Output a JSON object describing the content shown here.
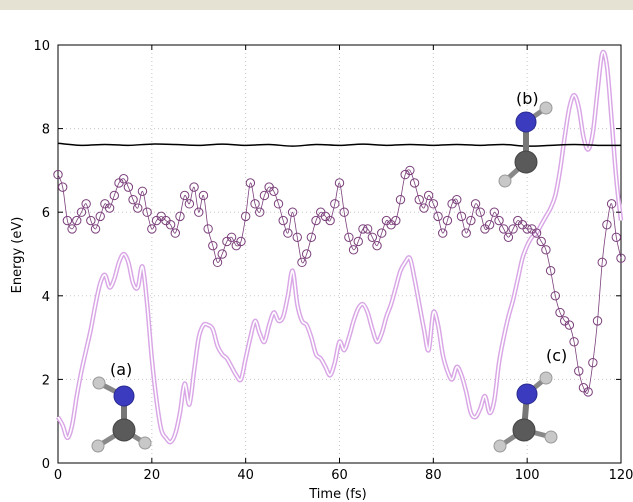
{
  "chart_data": {
    "type": "line",
    "title": "",
    "xlabel": "Time (fs)",
    "ylabel": "Energy (eV)",
    "xlim": [
      0,
      120
    ],
    "ylim": [
      0,
      10
    ],
    "xticks": [
      "0",
      "20",
      "40",
      "60",
      "80",
      "100",
      "120"
    ],
    "yticks": [
      "0",
      "2",
      "4",
      "6",
      "8",
      "10"
    ],
    "grid": true,
    "legend": "none",
    "annotations": [
      "(a)",
      "(b)",
      "(c)"
    ],
    "colors": {
      "total": "#000000",
      "markers": "#7a3f7a",
      "curve_outer": "#d9a6e6",
      "curve_inner": "#ffffff"
    },
    "series": [
      {
        "style": "solid-black",
        "x": [
          0,
          5,
          10,
          15,
          20,
          25,
          30,
          35,
          40,
          45,
          50,
          55,
          60,
          65,
          70,
          75,
          80,
          85,
          90,
          95,
          100,
          105,
          110,
          115,
          120
        ],
        "y": [
          7.65,
          7.6,
          7.62,
          7.6,
          7.63,
          7.62,
          7.6,
          7.63,
          7.6,
          7.62,
          7.58,
          7.62,
          7.6,
          7.63,
          7.6,
          7.62,
          7.6,
          7.62,
          7.6,
          7.62,
          7.58,
          7.6,
          7.62,
          7.6,
          7.6
        ]
      },
      {
        "style": "open-circles",
        "x": [
          0,
          1,
          2,
          3,
          4,
          5,
          6,
          7,
          8,
          9,
          10,
          11,
          12,
          13,
          14,
          15,
          16,
          17,
          18,
          19,
          20,
          21,
          22,
          23,
          24,
          25,
          26,
          27,
          28,
          29,
          30,
          31,
          32,
          33,
          34,
          35,
          36,
          37,
          38,
          39,
          40,
          41,
          42,
          43,
          44,
          45,
          46,
          47,
          48,
          49,
          50,
          51,
          52,
          53,
          54,
          55,
          56,
          57,
          58,
          59,
          60,
          61,
          62,
          63,
          64,
          65,
          66,
          67,
          68,
          69,
          70,
          71,
          72,
          73,
          74,
          75,
          76,
          77,
          78,
          79,
          80,
          81,
          82,
          83,
          84,
          85,
          86,
          87,
          88,
          89,
          90,
          91,
          92,
          93,
          94,
          95,
          96,
          97,
          98,
          99,
          100,
          101,
          102,
          103,
          104,
          105,
          106,
          107,
          108,
          109,
          110,
          111,
          112,
          113,
          114,
          115,
          116,
          117,
          118,
          119,
          120
        ],
        "y": [
          6.9,
          6.6,
          5.8,
          5.6,
          5.8,
          6.0,
          6.2,
          5.8,
          5.6,
          5.9,
          6.2,
          6.1,
          6.4,
          6.7,
          6.8,
          6.6,
          6.3,
          6.1,
          6.5,
          6.0,
          5.6,
          5.8,
          5.9,
          5.8,
          5.7,
          5.5,
          5.9,
          6.4,
          6.2,
          6.6,
          6.0,
          6.4,
          5.6,
          5.2,
          4.8,
          5.0,
          5.3,
          5.4,
          5.2,
          5.3,
          5.9,
          6.7,
          6.2,
          6.0,
          6.4,
          6.6,
          6.5,
          6.2,
          5.8,
          5.5,
          6.0,
          5.4,
          4.8,
          5.0,
          5.4,
          5.8,
          6.0,
          5.9,
          5.8,
          6.2,
          6.7,
          6.0,
          5.4,
          5.1,
          5.3,
          5.6,
          5.6,
          5.4,
          5.2,
          5.5,
          5.8,
          5.7,
          5.8,
          6.3,
          6.9,
          7.0,
          6.7,
          6.3,
          6.1,
          6.4,
          6.2,
          5.9,
          5.5,
          5.8,
          6.2,
          6.3,
          5.9,
          5.5,
          5.8,
          6.2,
          6.0,
          5.6,
          5.7,
          6.0,
          5.8,
          5.6,
          5.4,
          5.6,
          5.8,
          5.7,
          5.6,
          5.6,
          5.5,
          5.3,
          5.1,
          4.6,
          4.0,
          3.6,
          3.4,
          3.3,
          2.9,
          2.2,
          1.8,
          1.7,
          2.4,
          3.4,
          4.8,
          5.7,
          6.2,
          5.4,
          4.9
        ]
      },
      {
        "style": "double-line-pink",
        "x": [
          0,
          1,
          2,
          3,
          4,
          5,
          6,
          7,
          8,
          9,
          10,
          11,
          12,
          13,
          14,
          15,
          16,
          17,
          18,
          19,
          20,
          21,
          22,
          23,
          24,
          25,
          26,
          27,
          28,
          29,
          30,
          31,
          32,
          33,
          34,
          35,
          36,
          37,
          38,
          39,
          40,
          41,
          42,
          43,
          44,
          45,
          46,
          47,
          48,
          49,
          50,
          51,
          52,
          53,
          54,
          55,
          56,
          57,
          58,
          59,
          60,
          61,
          62,
          63,
          64,
          65,
          66,
          67,
          68,
          69,
          70,
          71,
          72,
          73,
          74,
          75,
          76,
          77,
          78,
          79,
          80,
          81,
          82,
          83,
          84,
          85,
          86,
          87,
          88,
          89,
          90,
          91,
          92,
          93,
          94,
          95,
          96,
          97,
          98,
          99,
          100,
          101,
          102,
          103,
          104,
          105,
          106,
          107,
          108,
          109,
          110,
          111,
          112,
          113,
          114,
          115,
          116,
          117,
          118,
          119,
          120
        ],
        "y": [
          1.1,
          0.9,
          0.6,
          0.9,
          1.6,
          2.2,
          2.7,
          3.2,
          3.8,
          4.3,
          4.5,
          4.2,
          4.4,
          4.8,
          5.0,
          4.8,
          4.3,
          4.2,
          4.7,
          3.8,
          2.5,
          1.5,
          0.8,
          0.6,
          0.5,
          0.7,
          1.2,
          1.9,
          1.4,
          2.2,
          3.0,
          3.3,
          3.3,
          3.2,
          2.8,
          2.6,
          2.5,
          2.3,
          2.1,
          2.0,
          2.5,
          3.0,
          3.4,
          3.1,
          2.9,
          3.3,
          3.6,
          3.4,
          3.5,
          4.0,
          4.6,
          3.8,
          3.4,
          3.3,
          3.0,
          2.6,
          2.5,
          2.3,
          2.1,
          2.4,
          2.9,
          2.7,
          3.0,
          3.4,
          3.7,
          3.8,
          3.6,
          3.2,
          2.9,
          3.1,
          3.5,
          3.8,
          4.2,
          4.6,
          4.8,
          4.9,
          4.4,
          3.8,
          3.2,
          2.7,
          3.6,
          3.3,
          2.6,
          2.2,
          2.0,
          2.3,
          2.1,
          1.7,
          1.2,
          1.1,
          1.3,
          1.6,
          1.2,
          1.5,
          2.4,
          3.0,
          3.5,
          3.9,
          4.4,
          4.9,
          5.2,
          5.4,
          5.5,
          5.7,
          5.9,
          6.1,
          6.4,
          7.0,
          7.8,
          8.5,
          8.8,
          8.5,
          7.8,
          7.5,
          7.9,
          8.9,
          9.8,
          9.5,
          8.2,
          6.8,
          5.8
        ]
      }
    ]
  }
}
